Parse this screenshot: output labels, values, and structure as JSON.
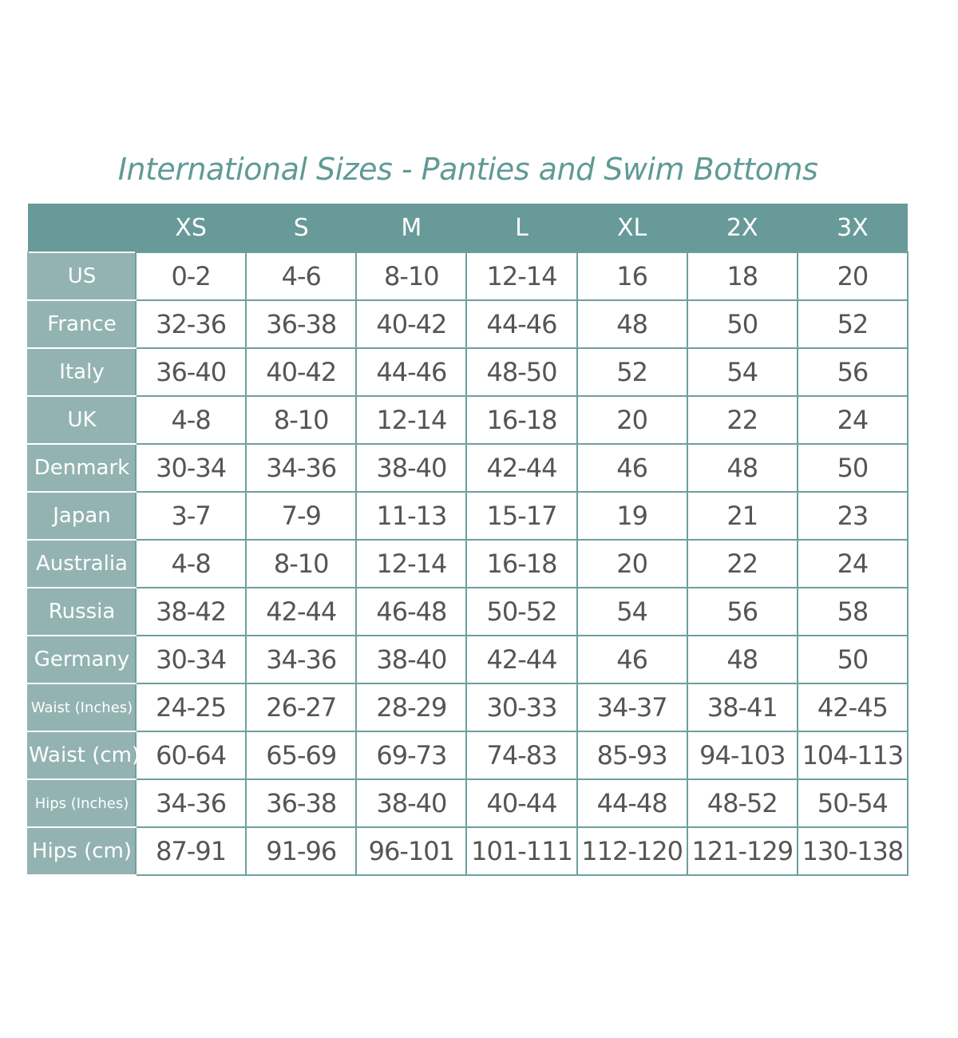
{
  "title": "International Sizes - Panties and Swim Bottoms",
  "colors": {
    "header": "#679a99",
    "row_label": "#93b3b2",
    "title": "#5f9a96",
    "text": "#555555"
  },
  "columns": [
    "",
    "XS",
    "S",
    "M",
    "L",
    "XL",
    "2X",
    "3X"
  ],
  "rows": [
    {
      "label": "US",
      "values": [
        "0-2",
        "4-6",
        "8-10",
        "12-14",
        "16",
        "18",
        "20"
      ]
    },
    {
      "label": "France",
      "values": [
        "32-36",
        "36-38",
        "40-42",
        "44-46",
        "48",
        "50",
        "52"
      ]
    },
    {
      "label": "Italy",
      "values": [
        "36-40",
        "40-42",
        "44-46",
        "48-50",
        "52",
        "54",
        "56"
      ]
    },
    {
      "label": "UK",
      "values": [
        "4-8",
        "8-10",
        "12-14",
        "16-18",
        "20",
        "22",
        "24"
      ]
    },
    {
      "label": "Denmark",
      "values": [
        "30-34",
        "34-36",
        "38-40",
        "42-44",
        "46",
        "48",
        "50"
      ]
    },
    {
      "label": "Japan",
      "values": [
        "3-7",
        "7-9",
        "11-13",
        "15-17",
        "19",
        "21",
        "23"
      ]
    },
    {
      "label": "Australia",
      "values": [
        "4-8",
        "8-10",
        "12-14",
        "16-18",
        "20",
        "22",
        "24"
      ]
    },
    {
      "label": "Russia",
      "values": [
        "38-42",
        "42-44",
        "46-48",
        "50-52",
        "54",
        "56",
        "58"
      ]
    },
    {
      "label": "Germany",
      "values": [
        "30-34",
        "34-36",
        "38-40",
        "42-44",
        "46",
        "48",
        "50"
      ]
    },
    {
      "label": "Waist (Inches)",
      "values": [
        "24-25",
        "26-27",
        "28-29",
        "30-33",
        "34-37",
        "38-41",
        "42-45"
      ]
    },
    {
      "label": "Waist (cm)",
      "values": [
        "60-64",
        "65-69",
        "69-73",
        "74-83",
        "85-93",
        "94-103",
        "104-113"
      ]
    },
    {
      "label": "Hips (Inches)",
      "values": [
        "34-36",
        "36-38",
        "38-40",
        "40-44",
        "44-48",
        "48-52",
        "50-54"
      ]
    },
    {
      "label": "Hips (cm)",
      "values": [
        "87-91",
        "91-96",
        "96-101",
        "101-111",
        "112-120",
        "121-129",
        "130-138"
      ]
    }
  ]
}
